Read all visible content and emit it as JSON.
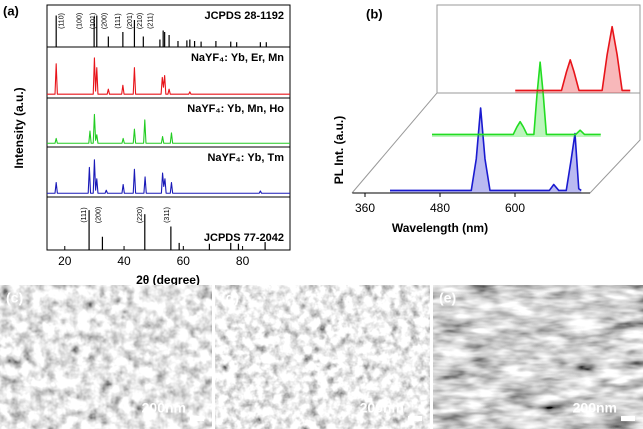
{
  "chart_data": [
    {
      "type": "line",
      "panel_label": "(a)",
      "xlabel": "2θ (degree)",
      "ylabel": "Intensity (a.u.)",
      "xlim": [
        14,
        96
      ],
      "xticks": [
        20,
        40,
        60,
        80
      ],
      "ylim": [
        0,
        100
      ],
      "series": [
        {
          "name": "JCPDS 28-1192",
          "style": "stick",
          "color": "#000000",
          "x": [
            17.1,
            29.9,
            30.8,
            34.7,
            39.6,
            43.5,
            46.5,
            52.1,
            53.2,
            53.7,
            55.2,
            58.2,
            61.2,
            62.2,
            63.8,
            66.0,
            71.0,
            76.0,
            78.0,
            86.0,
            88.0
          ],
          "values": [
            95,
            90,
            95,
            25,
            40,
            80,
            25,
            15,
            45,
            40,
            30,
            10,
            12,
            15,
            10,
            8,
            10,
            8,
            6,
            6,
            6
          ],
          "peak_labels": [
            {
              "x": 19,
              "label": "(110)"
            },
            {
              "x": 25,
              "label": "(100)"
            },
            {
              "x": 29.5,
              "label": "(101)"
            },
            {
              "x": 33.5,
              "label": "(200)"
            },
            {
              "x": 38,
              "label": "(111)"
            },
            {
              "x": 42,
              "label": "(201)"
            },
            {
              "x": 45.5,
              "label": "(210)"
            },
            {
              "x": 49,
              "label": "(211)"
            }
          ]
        },
        {
          "name": "NaYF₄: Yb, Er, Mn",
          "style": "line",
          "color": "#e8141a",
          "x": [
            14,
            16.7,
            17.1,
            17.5,
            29.6,
            30.0,
            30.4,
            30.8,
            31.2,
            34.3,
            34.7,
            35.1,
            39.2,
            39.6,
            40.0,
            43.1,
            43.5,
            43.9,
            52.5,
            52.9,
            53.3,
            53.7,
            54.1,
            54.8,
            55.2,
            55.6,
            61.8,
            62.2,
            62.6,
            96
          ],
          "values": [
            2,
            2,
            80,
            2,
            2,
            95,
            10,
            70,
            2,
            2,
            15,
            2,
            2,
            25,
            2,
            2,
            70,
            2,
            2,
            45,
            20,
            50,
            2,
            2,
            15,
            2,
            2,
            8,
            2,
            2
          ]
        },
        {
          "name": "NaYF₄: Yb, Mn, Ho",
          "style": "line",
          "color": "#22cc22",
          "x": [
            14,
            16.7,
            17.1,
            17.5,
            28.1,
            28.5,
            28.9,
            29.6,
            30.0,
            30.4,
            30.8,
            31.2,
            39.3,
            39.7,
            40.1,
            43.1,
            43.5,
            43.9,
            46.6,
            47.0,
            47.4,
            52.6,
            53.0,
            53.4,
            55.6,
            56.0,
            56.4,
            96
          ],
          "values": [
            2,
            2,
            15,
            2,
            2,
            35,
            2,
            2,
            80,
            10,
            25,
            2,
            2,
            15,
            2,
            2,
            40,
            2,
            2,
            65,
            2,
            2,
            20,
            2,
            2,
            30,
            2,
            2
          ]
        },
        {
          "name": "NaYF₄: Yb, Tm",
          "style": "line",
          "color": "#1a1ab8",
          "x": [
            14,
            16.7,
            17.1,
            17.5,
            27.9,
            28.3,
            28.7,
            29.6,
            30.0,
            30.4,
            30.8,
            31.2,
            33.6,
            34.0,
            34.4,
            39.3,
            39.7,
            40.1,
            43.1,
            43.5,
            43.9,
            46.7,
            47.1,
            47.5,
            52.6,
            53.0,
            53.4,
            53.8,
            54.2,
            55.6,
            56.0,
            56.4,
            85.6,
            86.0,
            86.4,
            96
          ],
          "values": [
            2,
            2,
            30,
            2,
            2,
            70,
            2,
            2,
            90,
            10,
            40,
            2,
            2,
            10,
            2,
            2,
            25,
            2,
            2,
            65,
            2,
            2,
            45,
            2,
            2,
            55,
            20,
            40,
            2,
            2,
            30,
            2,
            2,
            8,
            2,
            2
          ]
        },
        {
          "name": "JCPDS 77-2042",
          "style": "stick",
          "color": "#000000",
          "x": [
            28.2,
            32.7,
            47.0,
            55.8,
            58.6,
            68.8,
            76.0,
            78.6,
            87.6
          ],
          "values": [
            90,
            25,
            80,
            50,
            10,
            8,
            10,
            8,
            12
          ],
          "peak_labels": [
            {
              "x": 26.5,
              "label": "(111)"
            },
            {
              "x": 31.5,
              "label": "(200)"
            },
            {
              "x": 45.5,
              "label": "(220)"
            },
            {
              "x": 54.5,
              "label": "(311)"
            }
          ]
        }
      ]
    },
    {
      "type": "line3d",
      "panel_label": "(b)",
      "xlabel": "Wavelength (nm)",
      "ylabel": "PL Int. (a.u.)",
      "xlim": [
        340,
        720
      ],
      "xticks": [
        360,
        480,
        600
      ],
      "ylim": [
        0,
        100
      ],
      "series": [
        {
          "color": "#1a1ad0",
          "x": [
            400,
            530,
            538,
            545,
            552,
            560,
            655,
            662,
            670,
            682,
            690,
            696,
            702,
            706
          ],
          "values": [
            3,
            3,
            40,
            100,
            40,
            3,
            3,
            10,
            3,
            3,
            40,
            70,
            5,
            3
          ]
        },
        {
          "color": "#22dd22",
          "x": [
            400,
            530,
            536,
            541,
            546,
            552,
            563,
            568,
            573,
            578,
            583,
            630,
            637,
            644,
            670
          ],
          "values": [
            3,
            3,
            12,
            18,
            12,
            3,
            3,
            50,
            88,
            50,
            3,
            3,
            8,
            3,
            3
          ]
        },
        {
          "color": "#e8141a",
          "x": [
            466,
            540,
            548,
            554,
            560,
            568,
            605,
            613,
            621,
            629,
            637,
            650
          ],
          "values": [
            3,
            3,
            25,
            39,
            25,
            3,
            3,
            45,
            78,
            45,
            3,
            3
          ]
        }
      ]
    }
  ],
  "images": [
    {
      "label": "(c)",
      "scale_bar": "200nm"
    },
    {
      "label": "(d)",
      "scale_bar": "200nm"
    },
    {
      "label": "(e)",
      "scale_bar": "200nm"
    }
  ]
}
